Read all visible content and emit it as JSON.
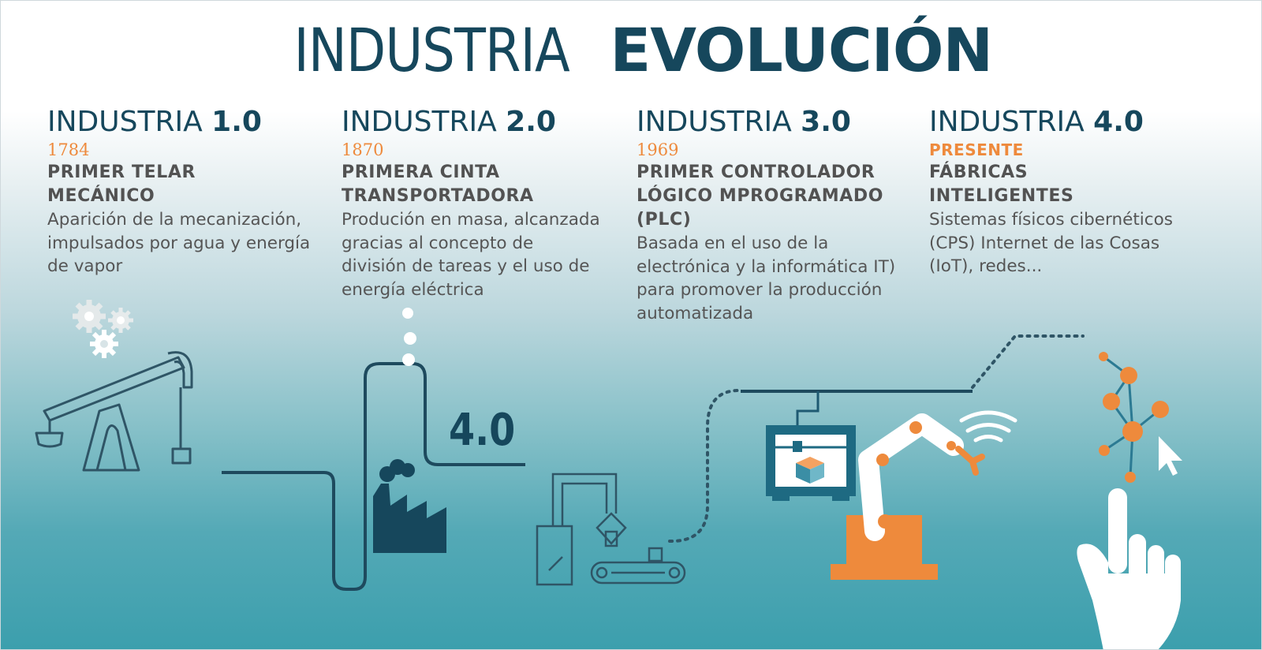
{
  "title": {
    "prefix": "INDUSTRIA",
    "highlight": "EVOLUCIÓN"
  },
  "stages": [
    {
      "label": "INDUSTRIA",
      "version": "1.0",
      "year": "1784",
      "subtitle": "PRIMER TELAR MECÁNICO",
      "description": "Aparición de la mecanización, impulsados por agua y energía de vapor"
    },
    {
      "label": "INDUSTRIA",
      "version": "2.0",
      "year": "1870",
      "subtitle": "PRIMERA CINTA TRANSPORTADORA",
      "description": "Produción en masa, alcanzada gracias al concepto de división de tareas y el uso de energía eléctrica"
    },
    {
      "label": "INDUSTRIA",
      "version": "3.0",
      "year": "1969",
      "subtitle": "PRIMER CONTROLADOR LÓGICO MPROGRAMADO (PLC)",
      "description": "Basada en el uso de la electrónica y la informática IT) para promover la producción automatizada"
    },
    {
      "label": "INDUSTRIA",
      "version": "4.0",
      "year": "PRESENTE",
      "subtitle": "FÁBRICAS INTELIGENTES",
      "description": "Sistemas físicos cibernéticos (CPS) Internet de las Cosas (IoT), redes..."
    }
  ],
  "illustration": {
    "factory_sign": "4.0"
  },
  "colors": {
    "navy": "#16475c",
    "orange": "#ee8a3c",
    "teal": "#3c9fad",
    "text_gray": "#555555"
  },
  "icons": [
    "gears-icon",
    "pump-jack-icon",
    "factory-icon",
    "conveyor-belt-icon",
    "printer-3d-icon",
    "robot-arm-icon",
    "wifi-icon",
    "network-nodes-icon",
    "cursor-icon",
    "hand-pointer-icon"
  ]
}
